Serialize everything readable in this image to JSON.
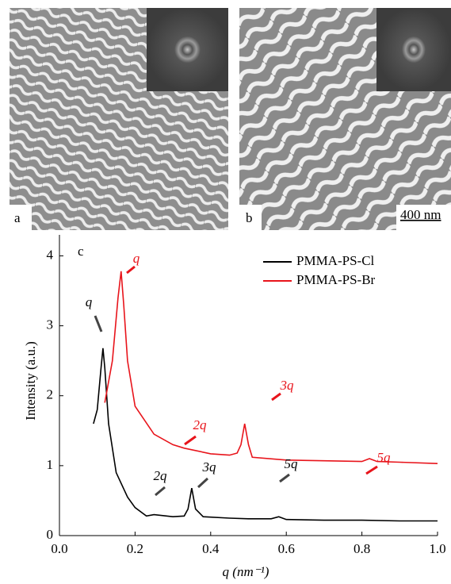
{
  "panels": {
    "a_label": "a",
    "b_label": "b",
    "scale_bar": "400 nm"
  },
  "chart_data": {
    "type": "line",
    "panel_label": "c",
    "x_label": "q (nm⁻¹)",
    "y_label": "Intensity (a.u.)",
    "xlim": [
      0,
      1
    ],
    "xticks": [
      {
        "value": 0,
        "label": "0.0"
      },
      {
        "value": 0.2,
        "label": "0.2"
      },
      {
        "value": 0.4,
        "label": "0.4"
      },
      {
        "value": 0.6,
        "label": "0.6"
      },
      {
        "value": 0.8,
        "label": "0.8"
      },
      {
        "value": 1,
        "label": "1.0"
      }
    ],
    "ylim": [
      0,
      4.3
    ],
    "yticks": [
      0,
      1,
      2,
      3,
      4
    ],
    "series": [
      {
        "name": "PMMA-PS-Cl",
        "color": "#000000",
        "x": [
          0.09,
          0.1,
          0.11,
          0.115,
          0.12,
          0.13,
          0.15,
          0.18,
          0.2,
          0.23,
          0.25,
          0.3,
          0.33,
          0.34,
          0.35,
          0.36,
          0.38,
          0.45,
          0.5,
          0.56,
          0.58,
          0.6,
          0.7,
          0.8,
          0.9,
          1.0
        ],
        "values": [
          1.6,
          1.8,
          2.4,
          2.68,
          2.4,
          1.6,
          0.9,
          0.55,
          0.4,
          0.28,
          0.3,
          0.27,
          0.28,
          0.38,
          0.68,
          0.38,
          0.27,
          0.25,
          0.24,
          0.24,
          0.27,
          0.23,
          0.22,
          0.22,
          0.21,
          0.21
        ]
      },
      {
        "name": "PMMA-PS-Br",
        "color": "#e8141b",
        "x": [
          0.12,
          0.14,
          0.155,
          0.163,
          0.17,
          0.18,
          0.2,
          0.25,
          0.3,
          0.33,
          0.4,
          0.45,
          0.47,
          0.48,
          0.49,
          0.5,
          0.51,
          0.6,
          0.7,
          0.8,
          0.82,
          0.84,
          0.9,
          1.0
        ],
        "values": [
          1.9,
          2.5,
          3.4,
          3.78,
          3.3,
          2.5,
          1.85,
          1.45,
          1.3,
          1.25,
          1.17,
          1.15,
          1.18,
          1.3,
          1.6,
          1.3,
          1.12,
          1.08,
          1.07,
          1.06,
          1.1,
          1.06,
          1.05,
          1.03
        ]
      }
    ],
    "annotations": [
      {
        "text": "q",
        "color": "#000000"
      },
      {
        "text": "2q",
        "color": "#000000"
      },
      {
        "text": "3q",
        "color": "#000000"
      },
      {
        "text": "5q",
        "color": "#000000"
      },
      {
        "text": "q",
        "color": "#e8141b"
      },
      {
        "text": "2q",
        "color": "#e8141b"
      },
      {
        "text": "3q",
        "color": "#e8141b"
      },
      {
        "text": "5q",
        "color": "#e8141b"
      }
    ]
  }
}
